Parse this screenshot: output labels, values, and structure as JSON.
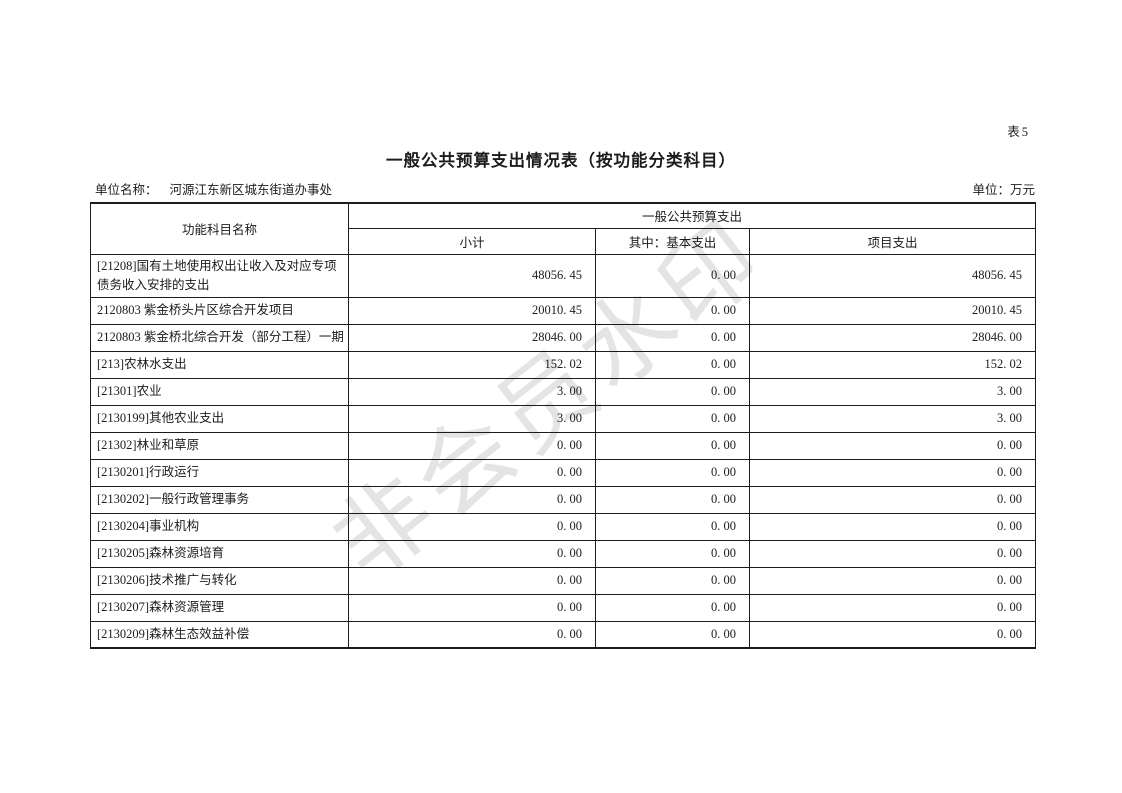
{
  "page": {
    "sheet_label": "表5",
    "title": "一般公共预算支出情况表（按功能分类科目）",
    "unit_name_label": "单位名称：",
    "unit_name_value": "河源江东新区城东街道办事处",
    "unit_label": "单位：万元",
    "watermark_text": "非会员水印"
  },
  "colors": {
    "background": "#ffffff",
    "text": "#1c1c1c",
    "border": "#1c1c1c",
    "watermark": "#e4e4e4"
  },
  "table": {
    "header": {
      "subject_column": "功能科目名称",
      "group": "一般公共预算支出",
      "subtotal": "小计",
      "basic": "其中：基本支出",
      "project": "项目支出"
    },
    "rows": [
      {
        "name": "[21208]国有土地使用权出让收入及对应专项债务收入安排的支出",
        "subtotal": "48056. 45",
        "basic": "0. 00",
        "project": "48056. 45"
      },
      {
        "name": "2120803 紫金桥头片区综合开发项目",
        "subtotal": "20010. 45",
        "basic": "0. 00",
        "project": "20010. 45"
      },
      {
        "name": "2120803 紫金桥北综合开发（部分工程）一期",
        "subtotal": "28046. 00",
        "basic": "0. 00",
        "project": "28046. 00"
      },
      {
        "name": "[213]农林水支出",
        "subtotal": "152. 02",
        "basic": "0. 00",
        "project": "152. 02"
      },
      {
        "name": "[21301]农业",
        "subtotal": "3. 00",
        "basic": "0. 00",
        "project": "3. 00"
      },
      {
        "name": "[2130199]其他农业支出",
        "subtotal": "3. 00",
        "basic": "0. 00",
        "project": "3. 00"
      },
      {
        "name": "[21302]林业和草原",
        "subtotal": "0. 00",
        "basic": "0. 00",
        "project": "0. 00"
      },
      {
        "name": "[2130201]行政运行",
        "subtotal": "0. 00",
        "basic": "0. 00",
        "project": "0. 00"
      },
      {
        "name": "[2130202]一般行政管理事务",
        "subtotal": "0. 00",
        "basic": "0. 00",
        "project": "0. 00"
      },
      {
        "name": "[2130204]事业机构",
        "subtotal": "0. 00",
        "basic": "0. 00",
        "project": "0. 00"
      },
      {
        "name": "[2130205]森林资源培育",
        "subtotal": "0. 00",
        "basic": "0. 00",
        "project": "0. 00"
      },
      {
        "name": "[2130206]技术推广与转化",
        "subtotal": "0. 00",
        "basic": "0. 00",
        "project": "0. 00"
      },
      {
        "name": "[2130207]森林资源管理",
        "subtotal": "0. 00",
        "basic": "0. 00",
        "project": "0. 00"
      },
      {
        "name": "[2130209]森林生态效益补偿",
        "subtotal": "0. 00",
        "basic": "0. 00",
        "project": "0. 00"
      }
    ]
  }
}
